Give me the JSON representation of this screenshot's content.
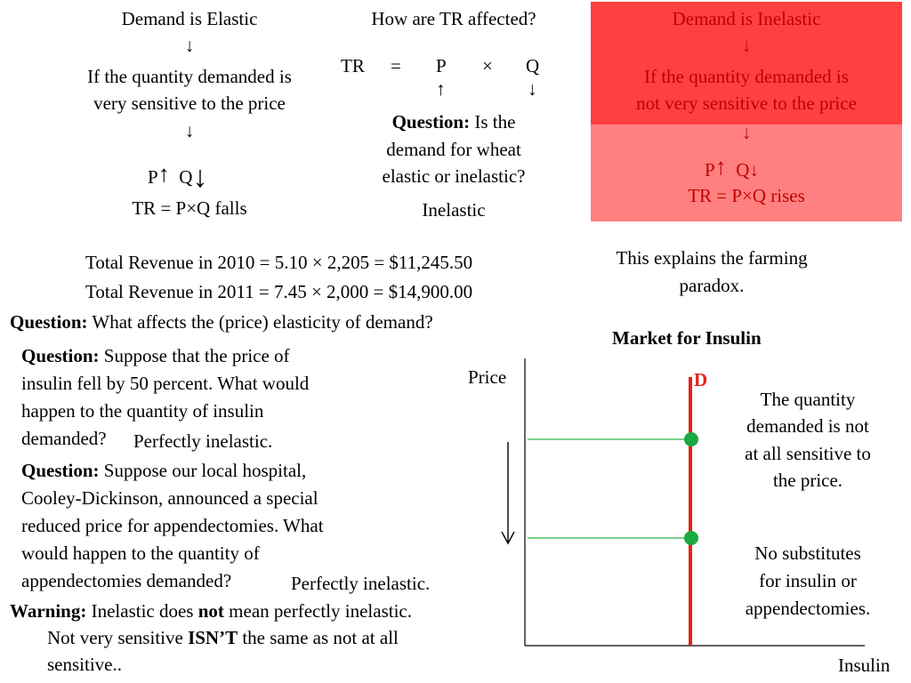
{
  "left_box": {
    "title": "Demand is Elastic",
    "arrow1": "↓",
    "line1": "If the quantity demanded is",
    "line2": "very sensitive to the price",
    "arrow2": "↓",
    "p": "P",
    "p_arrow": "↑",
    "q": "Q",
    "q_arrow": "↓",
    "tr": "TR = P×Q falls"
  },
  "middle_box": {
    "title": "How are TR affected?",
    "tr": "TR",
    "eq": "=",
    "p": "P",
    "times": "×",
    "q": "Q",
    "p_arrow": "↑",
    "q_arrow": "↓",
    "question_label": "Question:",
    "question_text_1": "Is the",
    "question_text_2": "demand for wheat",
    "question_text_3": "elastic or inelastic?",
    "answer": "Inelastic"
  },
  "right_box": {
    "title": "Demand is Inelastic",
    "arrow1": "↓",
    "line1": "If the quantity demanded is",
    "line2": "not very sensitive to the price",
    "arrow2": "↓",
    "p": "P",
    "p_arrow": "↑",
    "q": "Q",
    "q_arrow": "↓",
    "tr": "TR = P×Q rises",
    "colors": {
      "top": "#ff4040",
      "bottom": "#ff8080",
      "text": "#c00000"
    }
  },
  "revenue": {
    "line1": "Total Revenue in 2010 = 5.10 × 2,205  = $11,245.50",
    "line2": "Total Revenue in 2011 = 7.45 × 2,000  = $14,900.00"
  },
  "farming_paradox": {
    "line1": "This explains the farming",
    "line2": "paradox."
  },
  "q_elasticity": {
    "label": "Question:",
    "text": "What affects the (price) elasticity of demand?"
  },
  "q_insulin": {
    "label": "Question:",
    "line1": "Suppose that the price of",
    "line2": "insulin fell by 50 percent. What would",
    "line3": "happen to the quantity of insulin",
    "line4": "demanded?",
    "answer": "Perfectly inelastic."
  },
  "q_appendectomy": {
    "label": "Question:",
    "line1": "Suppose our local hospital,",
    "line2": "Cooley-Dickinson, announced a special",
    "line3": "reduced price for appendectomies. What",
    "line4": "would happen to the quantity of",
    "line5": "appendectomies demanded?",
    "answer": "Perfectly inelastic."
  },
  "warning": {
    "label": "Warning:",
    "text_a": "Inelastic does",
    "text_not": "not",
    "text_b": "mean perfectly inelastic.",
    "line2_a": "Not very sensitive",
    "line2_bold": "ISN’T",
    "line2_b": "the same as not at all",
    "line3": "sensitive.."
  },
  "graph": {
    "title": "Market for Insulin",
    "y_label": "Price",
    "x_label": "Insulin",
    "curve_label": "D",
    "note1_line1": "The quantity",
    "note1_line2": "demanded is not",
    "note1_line3": "at all sensitive to",
    "note1_line4": "the price.",
    "note2_line1": "No substitutes",
    "note2_line2": "for insulin or",
    "note2_line3": "appendectomies.",
    "colors": {
      "demand": "#e8201c",
      "points": "#1aa841",
      "guides": "#2db34a"
    }
  }
}
